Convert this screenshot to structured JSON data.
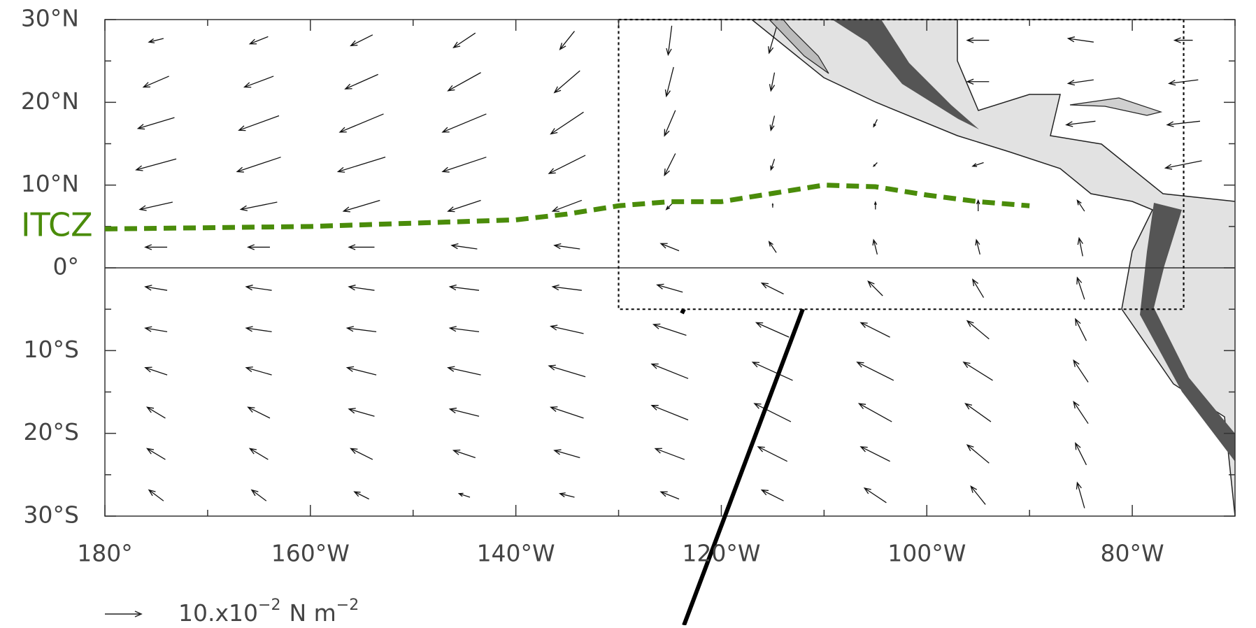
{
  "map": {
    "xticks": [
      {
        "value": -180,
        "label": "180°"
      },
      {
        "value": -160,
        "label": "160°W"
      },
      {
        "value": -140,
        "label": "140°W"
      },
      {
        "value": -120,
        "label": "120°W"
      },
      {
        "value": -100,
        "label": "100°W"
      },
      {
        "value": -80,
        "label": "80°W"
      }
    ],
    "xminor": [
      -170,
      -150,
      -130,
      -110,
      -90,
      -70
    ],
    "xlim": [
      -180,
      -70
    ],
    "yticks": [
      {
        "value": 30,
        "label": "30°N"
      },
      {
        "value": 20,
        "label": "20°N"
      },
      {
        "value": 10,
        "label": "10°N"
      },
      {
        "value": 0,
        "label": "0°"
      },
      {
        "value": -10,
        "label": "10°S"
      },
      {
        "value": -20,
        "label": "20°S"
      },
      {
        "value": -30,
        "label": "30°S"
      }
    ],
    "yminor": [
      25,
      15,
      5,
      -5,
      -15,
      -25
    ],
    "ylim": [
      -30,
      30
    ],
    "itcz": {
      "label": "ITCZ",
      "color": "#4a8c0a",
      "lon": [
        -180,
        -160,
        -140,
        -135,
        -130,
        -125,
        -120,
        -115,
        -110,
        -105,
        -100,
        -95,
        -90
      ],
      "lat": [
        4.7,
        5,
        5.8,
        6.5,
        7.5,
        8,
        8,
        9,
        10,
        9.8,
        8.8,
        8,
        7.5
      ]
    },
    "region": {
      "lon": [
        -130,
        -75
      ],
      "lat": [
        -5,
        30
      ]
    },
    "reference_vector": {
      "value": 10,
      "text": "10.x10",
      "exp": "−2",
      "unit": "N m",
      "unit_exp": "−2"
    },
    "wind": {
      "lon": [
        -175,
        -165,
        -155,
        -145,
        -135,
        -125,
        -115,
        -105,
        -95,
        -85,
        -75
      ],
      "lat": [
        27.5,
        22.5,
        17.5,
        12.5,
        7.5,
        2.5,
        -2.5,
        -7.5,
        -12.5,
        -17.5,
        -22.5,
        -27.5
      ],
      "u": [
        [
          -4,
          -5,
          -6,
          -6,
          -4,
          -1,
          -2,
          null,
          -6,
          -7,
          -5
        ],
        [
          -7,
          -8,
          -9,
          -9,
          -7,
          -2,
          -1,
          null,
          -6,
          -7,
          -8
        ],
        [
          -10,
          -11,
          -12,
          -12,
          -9,
          -3,
          -1,
          -1,
          null,
          -8,
          -9
        ],
        [
          -11,
          -12,
          -13,
          -12,
          -10,
          -3,
          -1,
          -1,
          -3,
          null,
          -10
        ],
        [
          -9,
          -10,
          -10,
          -9,
          -8,
          -2,
          0,
          0,
          0,
          -2,
          null
        ],
        [
          -6,
          -6,
          -7,
          -7,
          -7,
          -5,
          -2,
          -1,
          -1,
          -1,
          null
        ],
        [
          -6,
          -7,
          -7,
          -8,
          -8,
          -7,
          -6,
          -4,
          -3,
          -2,
          null
        ],
        [
          -6,
          -7,
          -8,
          -8,
          -9,
          -9,
          -9,
          -8,
          -6,
          -3,
          null
        ],
        [
          -6,
          -7,
          -8,
          -9,
          -10,
          -10,
          -11,
          -10,
          -8,
          -4,
          null
        ],
        [
          -5,
          -6,
          -7,
          -8,
          -9,
          -10,
          -10,
          -9,
          -7,
          -4,
          null
        ],
        [
          -5,
          -5,
          -6,
          -6,
          -7,
          -8,
          -8,
          -8,
          -6,
          -3,
          null
        ],
        [
          -4,
          -4,
          -4,
          -3,
          -4,
          -5,
          -6,
          -6,
          -4,
          -2,
          null
        ]
      ],
      "v": [
        [
          -1,
          -2,
          -3,
          -4,
          -5,
          -8,
          -7,
          null,
          0,
          1,
          0
        ],
        [
          -3,
          -3,
          -4,
          -5,
          -6,
          -8,
          -5,
          null,
          0,
          -1,
          -1
        ],
        [
          -3,
          -4,
          -5,
          -5,
          -6,
          -7,
          -4,
          -2,
          null,
          -1,
          -1
        ],
        [
          -3,
          -4,
          -4,
          -4,
          -5,
          -6,
          -3,
          -1,
          -1,
          null,
          -2
        ],
        [
          -2,
          -2,
          -3,
          -3,
          -3,
          -2,
          1,
          2,
          3,
          3,
          null
        ],
        [
          0,
          0,
          0,
          1,
          1,
          2,
          3,
          4,
          4,
          5,
          null
        ],
        [
          1,
          1,
          1,
          1,
          1,
          2,
          3,
          4,
          5,
          6,
          null
        ],
        [
          1,
          1,
          1,
          1,
          2,
          3,
          4,
          4,
          5,
          6,
          null
        ],
        [
          2,
          2,
          2,
          2,
          3,
          4,
          5,
          5,
          5,
          6,
          null
        ],
        [
          3,
          3,
          2,
          2,
          3,
          4,
          5,
          5,
          5,
          6,
          null
        ],
        [
          3,
          3,
          3,
          2,
          2,
          3,
          4,
          4,
          5,
          6,
          null
        ],
        [
          3,
          3,
          2,
          1,
          1,
          2,
          3,
          4,
          5,
          7,
          null
        ]
      ]
    }
  }
}
